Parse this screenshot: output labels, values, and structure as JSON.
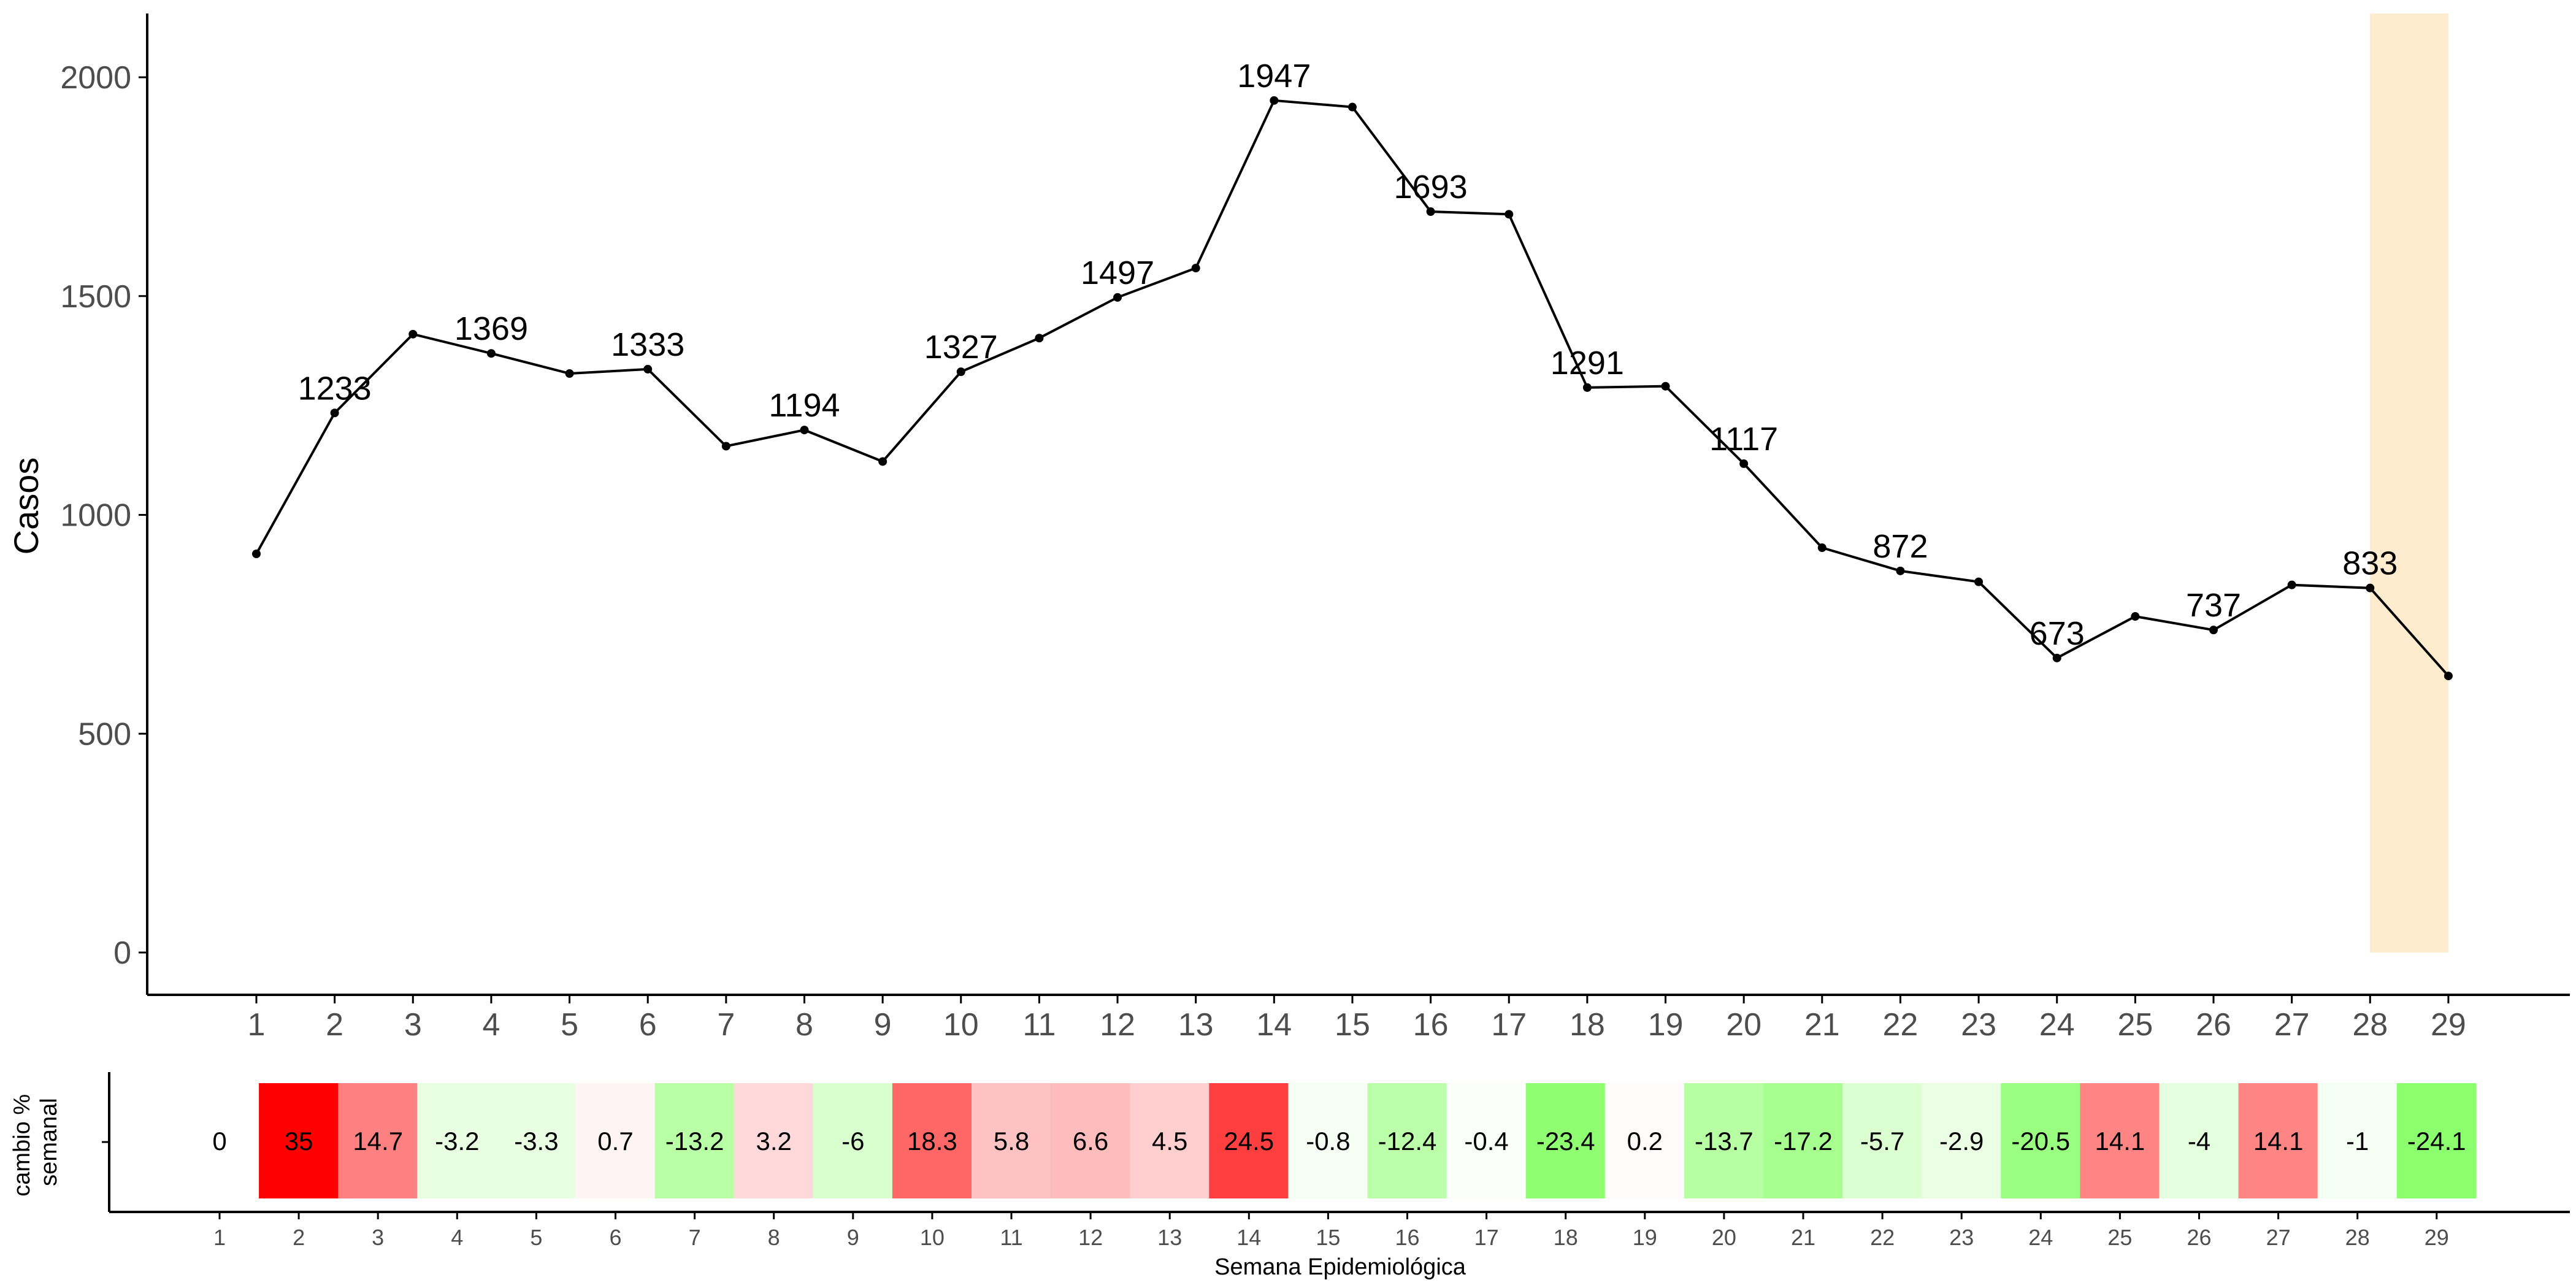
{
  "chart_data": [
    {
      "type": "line",
      "ylabel": "Casos",
      "xlabel": "",
      "ylim": [
        0,
        2000
      ],
      "yticks": [
        0,
        500,
        1000,
        1500,
        2000
      ],
      "x": [
        1,
        2,
        3,
        4,
        5,
        6,
        7,
        8,
        9,
        10,
        11,
        12,
        13,
        14,
        15,
        16,
        17,
        18,
        19,
        20,
        21,
        22,
        23,
        24,
        25,
        26,
        27,
        28,
        29
      ],
      "values": [
        911,
        1233,
        1413,
        1369,
        1323,
        1333,
        1157,
        1194,
        1122,
        1327,
        1404,
        1497,
        1564,
        1947,
        1932,
        1693,
        1687,
        1291,
        1294,
        1117,
        925,
        872,
        847,
        673,
        768,
        737,
        840,
        833,
        632
      ],
      "data_labels": [
        {
          "x": 2,
          "label": "1233"
        },
        {
          "x": 4,
          "label": "1369"
        },
        {
          "x": 6,
          "label": "1333"
        },
        {
          "x": 8,
          "label": "1194"
        },
        {
          "x": 10,
          "label": "1327"
        },
        {
          "x": 12,
          "label": "1497"
        },
        {
          "x": 14,
          "label": "1947"
        },
        {
          "x": 16,
          "label": "1693"
        },
        {
          "x": 18,
          "label": "1291"
        },
        {
          "x": 20,
          "label": "1117"
        },
        {
          "x": 22,
          "label": "872"
        },
        {
          "x": 24,
          "label": "673"
        },
        {
          "x": 26,
          "label": "737"
        },
        {
          "x": 28,
          "label": "833"
        }
      ],
      "highlight": {
        "x_from": 28,
        "x_to": 29,
        "color": "#ffebcd"
      },
      "line_color": "#000000",
      "grid": false
    },
    {
      "type": "heatmap",
      "ylabel": "cambio %\nsemanal",
      "xlabel": "Semana Epidemiológica",
      "x": [
        1,
        2,
        3,
        4,
        5,
        6,
        7,
        8,
        9,
        10,
        11,
        12,
        13,
        14,
        15,
        16,
        17,
        18,
        19,
        20,
        21,
        22,
        23,
        24,
        25,
        26,
        27,
        28,
        29
      ],
      "values": [
        0,
        35,
        14.7,
        -3.2,
        -3.3,
        0.7,
        -13.2,
        3.2,
        -6,
        18.3,
        5.8,
        6.6,
        4.5,
        24.5,
        -0.8,
        -12.4,
        -0.4,
        -23.4,
        0.2,
        -13.7,
        -17.2,
        -5.7,
        -2.9,
        -20.5,
        14.1,
        -4,
        14.1,
        -1,
        -24.1
      ],
      "labels": [
        "0",
        "35",
        "14.7",
        "-3.2",
        "-3.3",
        "0.7",
        "-13.2",
        "3.2",
        "-6",
        "18.3",
        "5.8",
        "6.6",
        "4.5",
        "24.5",
        "-0.8",
        "-12.4",
        "-0.4",
        "-23.4",
        "0.2",
        "-13.7",
        "-17.2",
        "-5.7",
        "-2.9",
        "-20.5",
        "14.1",
        "-4",
        "14.1",
        "-1",
        "-24.1"
      ],
      "color_scale": {
        "negative": "#8cff6e",
        "zero": "#ffffff",
        "positive": "#ff0000"
      },
      "grid": false
    }
  ]
}
